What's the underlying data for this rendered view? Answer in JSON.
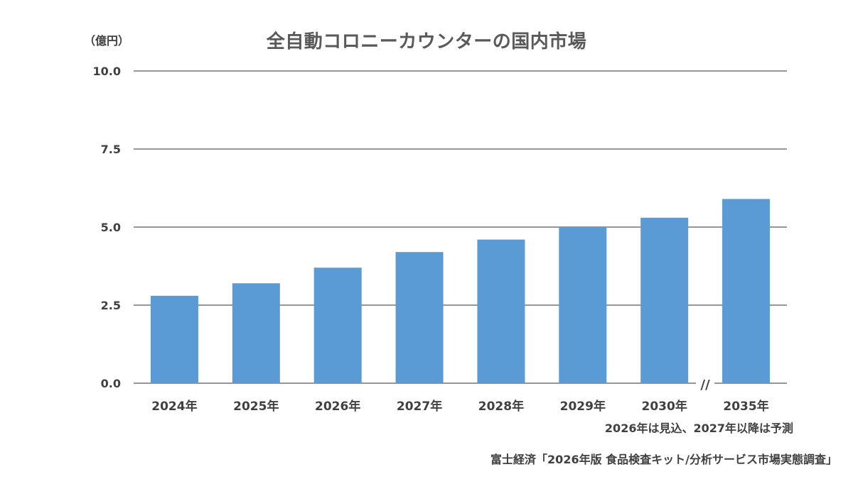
{
  "chart_data": {
    "type": "bar",
    "title": "全自動コロニーカウンターの国内市場",
    "unit": "（億円）",
    "categories": [
      "2024年",
      "2025年",
      "2026年",
      "2027年",
      "2028年",
      "2029年",
      "2030年",
      "2035年"
    ],
    "values": [
      2.8,
      3.2,
      3.7,
      4.2,
      4.6,
      5.0,
      5.3,
      5.9
    ],
    "ylim": [
      0,
      10
    ],
    "yticks": [
      "0.0",
      "2.5",
      "5.0",
      "7.5",
      "10.0"
    ],
    "grid": true,
    "axis_break": "//",
    "bar_color": "#5B9BD5",
    "note": "2026年は見込、2027年以降は予測",
    "source": "富士経済「2026年版 食品検査キット/分析サービス市場実態調査」"
  }
}
